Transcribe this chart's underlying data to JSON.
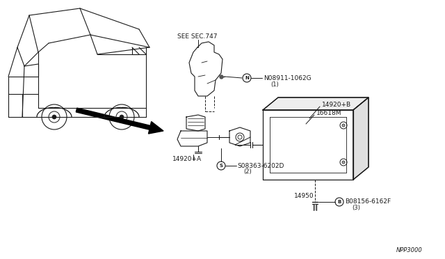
{
  "bg_color": "#ffffff",
  "line_color": "#1a1a1a",
  "text_color": "#1a1a1a",
  "fig_width": 6.4,
  "fig_height": 3.72,
  "watermark": "NPP3000",
  "see_sec": "SEE SEC.747",
  "part1_label": "N08911-1062G",
  "part1_num": "(1)",
  "part2_label": "14920+B",
  "part3_label": "16618M",
  "part4_label": "14920+A",
  "part5_label": "S08363-6202D",
  "part5_num": "(2)",
  "part6_label": "14950",
  "part7_label": "B08156-6162F",
  "part7_num": "(3)"
}
